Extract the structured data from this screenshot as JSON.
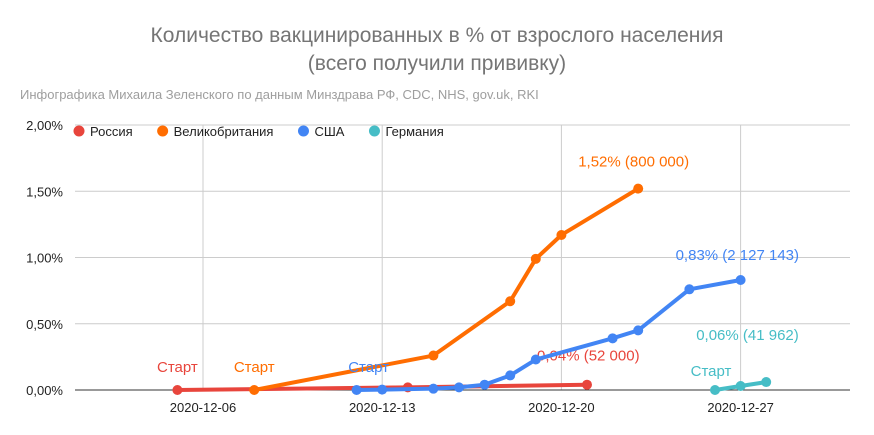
{
  "chart_data": {
    "type": "line",
    "title": [
      "Количество вакцинированных в % от взрослого населения",
      "(всего получили прививку)"
    ],
    "subtitle": "Инфографика Михаила Зеленского по данным Минздрава РФ, CDC, NHS, gov.uk, RKI",
    "xlabel": "",
    "ylabel": "",
    "ylim": [
      0,
      2
    ],
    "yticks": [
      "0,00%",
      "0,50%",
      "1,00%",
      "1,50%",
      "2,00%"
    ],
    "xticks": [
      {
        "label": "2020-12-06",
        "day": 6
      },
      {
        "label": "2020-12-13",
        "day": 13
      },
      {
        "label": "2020-12-20",
        "day": 20
      },
      {
        "label": "2020-12-27",
        "day": 27
      }
    ],
    "xlim_day": [
      1,
      31
    ],
    "legend_position": "top-left",
    "series": [
      {
        "name": "Россия",
        "color": "#e8453c",
        "points": [
          [
            5,
            0
          ],
          [
            14,
            0.02
          ],
          [
            21,
            0.04
          ]
        ],
        "start_label": "Старт",
        "end_label": "0,04% (52 000)"
      },
      {
        "name": "Великобритания",
        "color": "#ff6d01",
        "points": [
          [
            8,
            0
          ],
          [
            15,
            0.26
          ],
          [
            18,
            0.67
          ],
          [
            19,
            0.99
          ],
          [
            20,
            1.17
          ],
          [
            23,
            1.52
          ]
        ],
        "start_label": "Старт",
        "end_label": "1,52% (800 000)"
      },
      {
        "name": "США",
        "color": "#4285f4",
        "points": [
          [
            12,
            0
          ],
          [
            13,
            0.003
          ],
          [
            15,
            0.01
          ],
          [
            16,
            0.02
          ],
          [
            17,
            0.04
          ],
          [
            18,
            0.11
          ],
          [
            19,
            0.23
          ],
          [
            22,
            0.39
          ],
          [
            23,
            0.45
          ],
          [
            25,
            0.76
          ],
          [
            27,
            0.83
          ]
        ],
        "start_label": "Старт",
        "end_label": "0,83% (2 127 143)"
      },
      {
        "name": "Германия",
        "color": "#46bdc6",
        "points": [
          [
            26,
            0
          ],
          [
            27,
            0.03
          ],
          [
            28,
            0.06
          ]
        ],
        "start_label": "Старт",
        "end_label": "0,06% (41 962)"
      }
    ]
  }
}
